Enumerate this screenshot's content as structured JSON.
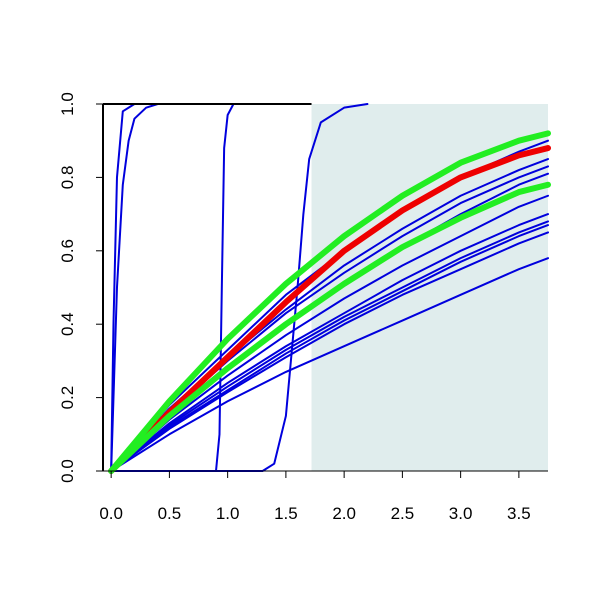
{
  "chart_data": {
    "type": "line",
    "title": "",
    "xlabel": "",
    "ylabel": "",
    "xlim": [
      -0.07,
      3.75
    ],
    "ylim": [
      0,
      1
    ],
    "grid": false,
    "legend": "none",
    "x_ticks": [
      "0.0",
      "0.5",
      "1.0",
      "1.5",
      "2.0",
      "2.5",
      "3.0",
      "3.5"
    ],
    "y_ticks": [
      "0.0",
      "0.2",
      "0.4",
      "0.6",
      "0.8",
      "1.0"
    ],
    "shaded_region": {
      "x_from": 1.72,
      "x_to": 3.75,
      "color": "#e0eded"
    },
    "colors": {
      "blue": "#0000dd",
      "red": "#ee0000",
      "green": "#22ee22",
      "axis": "#000000"
    },
    "series": [
      {
        "color": "blue",
        "x": [
          0,
          0.02,
          0.05,
          0.1,
          0.2,
          0.3
        ],
        "y": [
          0,
          0.4,
          0.8,
          0.98,
          1,
          1
        ]
      },
      {
        "color": "blue",
        "x": [
          0,
          0.05,
          0.1,
          0.15,
          0.2,
          0.3,
          0.4,
          0.5
        ],
        "y": [
          0,
          0.5,
          0.78,
          0.9,
          0.96,
          0.99,
          1,
          1
        ]
      },
      {
        "color": "blue",
        "x": [
          0,
          0.9,
          0.93,
          0.95,
          0.97,
          1,
          1.05,
          1.1
        ],
        "y": [
          0,
          0,
          0.1,
          0.5,
          0.88,
          0.97,
          1,
          1
        ]
      },
      {
        "color": "blue",
        "x": [
          0,
          1.3,
          1.4,
          1.5,
          1.6,
          1.65,
          1.7,
          1.8,
          2.0,
          2.2
        ],
        "y": [
          0,
          0,
          0.02,
          0.15,
          0.5,
          0.7,
          0.85,
          0.95,
          0.99,
          1
        ]
      },
      {
        "color": "blue",
        "x": [
          0,
          0.5,
          1,
          1.5,
          2,
          2.5,
          3,
          3.5,
          3.75
        ],
        "y": [
          0,
          0.18,
          0.33,
          0.48,
          0.6,
          0.71,
          0.8,
          0.87,
          0.9
        ]
      },
      {
        "color": "blue",
        "x": [
          0,
          0.5,
          1,
          1.5,
          2,
          2.5,
          3,
          3.5,
          3.75
        ],
        "y": [
          0,
          0.17,
          0.31,
          0.44,
          0.56,
          0.66,
          0.75,
          0.82,
          0.85
        ]
      },
      {
        "color": "blue",
        "x": [
          0,
          0.5,
          1,
          1.5,
          2,
          2.5,
          3,
          3.5,
          3.75
        ],
        "y": [
          0,
          0.16,
          0.3,
          0.43,
          0.54,
          0.64,
          0.73,
          0.8,
          0.83
        ]
      },
      {
        "color": "blue",
        "x": [
          0,
          0.5,
          1,
          1.5,
          2,
          2.5,
          3,
          3.5,
          3.75
        ],
        "y": [
          0,
          0.15,
          0.28,
          0.4,
          0.51,
          0.61,
          0.7,
          0.78,
          0.81
        ]
      },
      {
        "color": "blue",
        "x": [
          0,
          0.5,
          1,
          1.5,
          2,
          2.5,
          3,
          3.5,
          3.75
        ],
        "y": [
          0,
          0.14,
          0.26,
          0.37,
          0.47,
          0.56,
          0.64,
          0.72,
          0.75
        ]
      },
      {
        "color": "blue",
        "x": [
          0,
          0.5,
          1,
          1.5,
          2,
          2.5,
          3,
          3.5,
          3.75
        ],
        "y": [
          0,
          0.13,
          0.24,
          0.34,
          0.43,
          0.52,
          0.6,
          0.67,
          0.7
        ]
      },
      {
        "color": "blue",
        "x": [
          0,
          0.5,
          1,
          1.5,
          2,
          2.5,
          3,
          3.5,
          3.75
        ],
        "y": [
          0,
          0.125,
          0.23,
          0.33,
          0.42,
          0.5,
          0.58,
          0.65,
          0.68
        ]
      },
      {
        "color": "blue",
        "x": [
          0,
          0.5,
          1,
          1.5,
          2,
          2.5,
          3,
          3.5,
          3.75
        ],
        "y": [
          0,
          0.12,
          0.22,
          0.32,
          0.41,
          0.49,
          0.57,
          0.64,
          0.67
        ]
      },
      {
        "color": "blue",
        "x": [
          0,
          0.5,
          1,
          1.5,
          2,
          2.5,
          3,
          3.5,
          3.75
        ],
        "y": [
          0,
          0.115,
          0.215,
          0.31,
          0.4,
          0.48,
          0.55,
          0.62,
          0.65
        ]
      },
      {
        "color": "blue",
        "x": [
          0,
          0.5,
          1,
          1.5,
          2,
          2.5,
          3,
          3.5,
          3.75
        ],
        "y": [
          0,
          0.1,
          0.19,
          0.27,
          0.34,
          0.41,
          0.48,
          0.55,
          0.58
        ]
      },
      {
        "color": "red",
        "x": [
          0,
          0.5,
          1,
          1.5,
          2,
          2.5,
          3,
          3.5,
          3.75
        ],
        "y": [
          0,
          0.16,
          0.31,
          0.46,
          0.6,
          0.71,
          0.8,
          0.86,
          0.88
        ],
        "thick": true
      },
      {
        "color": "green",
        "x": [
          0,
          0.5,
          1,
          1.5,
          2,
          2.5,
          3,
          3.5,
          3.75
        ],
        "y": [
          0,
          0.19,
          0.36,
          0.51,
          0.64,
          0.75,
          0.84,
          0.9,
          0.92
        ],
        "thick": true
      },
      {
        "color": "green",
        "x": [
          0,
          0.5,
          1,
          1.5,
          2,
          2.5,
          3,
          3.5,
          3.75
        ],
        "y": [
          0,
          0.15,
          0.28,
          0.4,
          0.51,
          0.61,
          0.69,
          0.76,
          0.78
        ],
        "thick": true
      }
    ]
  }
}
